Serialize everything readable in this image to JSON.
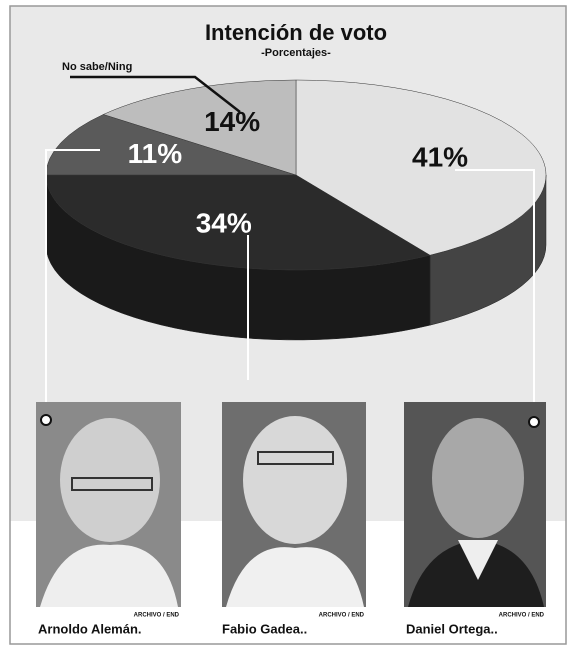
{
  "chart_data": {
    "type": "pie3d",
    "title": "Intención de voto",
    "subtitle": "-Porcentajes-",
    "categories": [
      "Daniel Ortega..",
      "Fabio Gadea..",
      "Arnoldo Alemán.",
      "No sabe/Ning"
    ],
    "values": [
      41,
      34,
      11,
      14
    ],
    "value_labels": [
      "41%",
      "34%",
      "11%",
      "14%"
    ],
    "colors": [
      "#e2e2e2",
      "#2b2b2b",
      "#5a5a5a",
      "#bdbdbd"
    ],
    "photo_credits": [
      "ARCHIVO / END",
      "ARCHIVO / END",
      "ARCHIVO / END"
    ]
  }
}
